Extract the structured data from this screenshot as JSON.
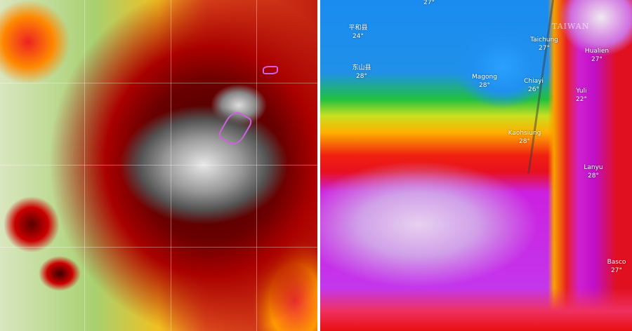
{
  "left_panel": {
    "description_marks": []
  },
  "right_panel": {
    "region_label": "TAIWAN",
    "cities": [
      {
        "name": "",
        "temp": "27°"
      },
      {
        "name": "平和县",
        "temp": "24°"
      },
      {
        "name": "东山县",
        "temp": "28°"
      },
      {
        "name": "Magong",
        "temp": "28°"
      },
      {
        "name": "Taichung",
        "temp": "27°"
      },
      {
        "name": "Chiayi",
        "temp": "26°"
      },
      {
        "name": "Kaohsiung",
        "temp": "28°"
      },
      {
        "name": "Hualien",
        "temp": "27°"
      },
      {
        "name": "Yuli",
        "temp": "22°"
      },
      {
        "name": "Lanyu",
        "temp": "28°"
      },
      {
        "name": "Basco",
        "temp": "27°"
      }
    ]
  }
}
